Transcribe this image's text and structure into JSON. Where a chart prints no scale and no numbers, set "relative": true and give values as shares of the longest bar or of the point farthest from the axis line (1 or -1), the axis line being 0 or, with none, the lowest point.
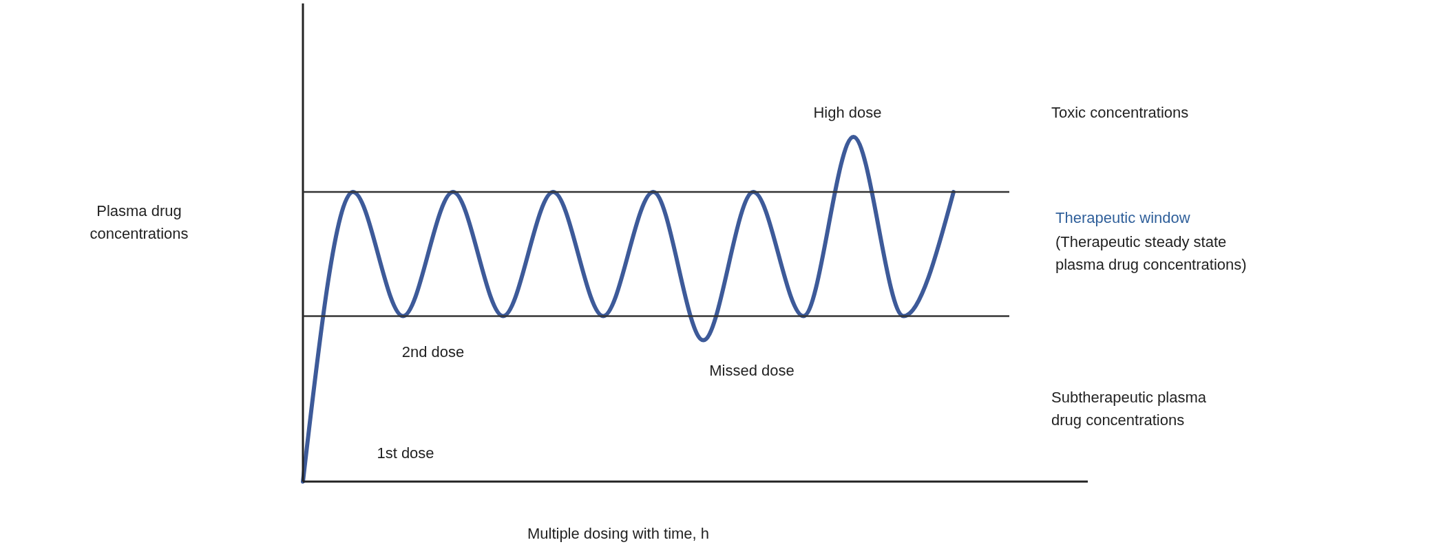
{
  "chart_data": {
    "type": "line",
    "relative": true,
    "xlabel": "Multiple dosing with time, h",
    "categories": [
      null,
      null,
      null,
      null,
      null,
      null,
      null,
      null,
      null,
      null,
      null,
      null,
      null,
      null
    ],
    "series": [
      {
        "color": "#3d5a99",
        "values": [
          0,
          0.84,
          0.48,
          0.84,
          0.48,
          0.84,
          0.48,
          0.84,
          0.41,
          0.84,
          0.48,
          1,
          0.48,
          0.84
        ]
      }
    ],
    "ref_lines": [
      {
        "axis": "y",
        "value": 0.84,
        "color": "#333333"
      },
      {
        "axis": "y",
        "value": 0.48,
        "color": "#333333"
      }
    ],
    "annotations": [
      "Plasma drug concentrations",
      "High dose",
      "2nd dose",
      "Missed dose",
      "1st dose",
      "Toxic concentrations",
      "Therapeutic window",
      "(Therapeutic steady state plasma drug concentrations)",
      "Subtherapeutic plasma drug concentrations"
    ],
    "marker": "none",
    "line_style": "solid"
  }
}
